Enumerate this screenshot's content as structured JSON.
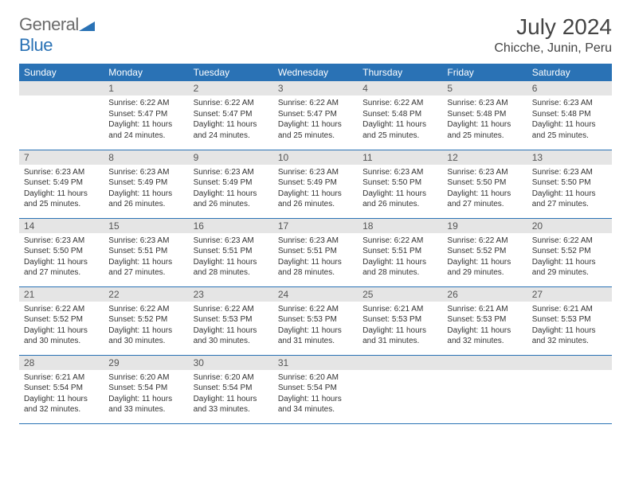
{
  "brand": {
    "word1": "General",
    "word2": "Blue",
    "tri_color": "#2a72b5"
  },
  "title": {
    "month": "July 2024",
    "location": "Chicche, Junin, Peru"
  },
  "colors": {
    "header_bg": "#2a72b5",
    "header_text": "#ffffff",
    "daynum_bg": "#e5e5e5",
    "row_divider": "#2a72b5",
    "text": "#333333",
    "page_bg": "#ffffff"
  },
  "typography": {
    "month_fontsize": 28,
    "location_fontsize": 16,
    "header_fontsize": 12,
    "daynum_fontsize": 12,
    "body_fontsize": 10
  },
  "weekdays": [
    "Sunday",
    "Monday",
    "Tuesday",
    "Wednesday",
    "Thursday",
    "Friday",
    "Saturday"
  ],
  "layout": {
    "first_weekday_index": 1,
    "days_in_month": 31
  },
  "days": {
    "1": {
      "sunrise": "6:22 AM",
      "sunset": "5:47 PM",
      "daylight_h": 11,
      "daylight_m": 24
    },
    "2": {
      "sunrise": "6:22 AM",
      "sunset": "5:47 PM",
      "daylight_h": 11,
      "daylight_m": 24
    },
    "3": {
      "sunrise": "6:22 AM",
      "sunset": "5:47 PM",
      "daylight_h": 11,
      "daylight_m": 25
    },
    "4": {
      "sunrise": "6:22 AM",
      "sunset": "5:48 PM",
      "daylight_h": 11,
      "daylight_m": 25
    },
    "5": {
      "sunrise": "6:23 AM",
      "sunset": "5:48 PM",
      "daylight_h": 11,
      "daylight_m": 25
    },
    "6": {
      "sunrise": "6:23 AM",
      "sunset": "5:48 PM",
      "daylight_h": 11,
      "daylight_m": 25
    },
    "7": {
      "sunrise": "6:23 AM",
      "sunset": "5:49 PM",
      "daylight_h": 11,
      "daylight_m": 25
    },
    "8": {
      "sunrise": "6:23 AM",
      "sunset": "5:49 PM",
      "daylight_h": 11,
      "daylight_m": 26
    },
    "9": {
      "sunrise": "6:23 AM",
      "sunset": "5:49 PM",
      "daylight_h": 11,
      "daylight_m": 26
    },
    "10": {
      "sunrise": "6:23 AM",
      "sunset": "5:49 PM",
      "daylight_h": 11,
      "daylight_m": 26
    },
    "11": {
      "sunrise": "6:23 AM",
      "sunset": "5:50 PM",
      "daylight_h": 11,
      "daylight_m": 26
    },
    "12": {
      "sunrise": "6:23 AM",
      "sunset": "5:50 PM",
      "daylight_h": 11,
      "daylight_m": 27
    },
    "13": {
      "sunrise": "6:23 AM",
      "sunset": "5:50 PM",
      "daylight_h": 11,
      "daylight_m": 27
    },
    "14": {
      "sunrise": "6:23 AM",
      "sunset": "5:50 PM",
      "daylight_h": 11,
      "daylight_m": 27
    },
    "15": {
      "sunrise": "6:23 AM",
      "sunset": "5:51 PM",
      "daylight_h": 11,
      "daylight_m": 27
    },
    "16": {
      "sunrise": "6:23 AM",
      "sunset": "5:51 PM",
      "daylight_h": 11,
      "daylight_m": 28
    },
    "17": {
      "sunrise": "6:23 AM",
      "sunset": "5:51 PM",
      "daylight_h": 11,
      "daylight_m": 28
    },
    "18": {
      "sunrise": "6:22 AM",
      "sunset": "5:51 PM",
      "daylight_h": 11,
      "daylight_m": 28
    },
    "19": {
      "sunrise": "6:22 AM",
      "sunset": "5:52 PM",
      "daylight_h": 11,
      "daylight_m": 29
    },
    "20": {
      "sunrise": "6:22 AM",
      "sunset": "5:52 PM",
      "daylight_h": 11,
      "daylight_m": 29
    },
    "21": {
      "sunrise": "6:22 AM",
      "sunset": "5:52 PM",
      "daylight_h": 11,
      "daylight_m": 30
    },
    "22": {
      "sunrise": "6:22 AM",
      "sunset": "5:52 PM",
      "daylight_h": 11,
      "daylight_m": 30
    },
    "23": {
      "sunrise": "6:22 AM",
      "sunset": "5:53 PM",
      "daylight_h": 11,
      "daylight_m": 30
    },
    "24": {
      "sunrise": "6:22 AM",
      "sunset": "5:53 PM",
      "daylight_h": 11,
      "daylight_m": 31
    },
    "25": {
      "sunrise": "6:21 AM",
      "sunset": "5:53 PM",
      "daylight_h": 11,
      "daylight_m": 31
    },
    "26": {
      "sunrise": "6:21 AM",
      "sunset": "5:53 PM",
      "daylight_h": 11,
      "daylight_m": 32
    },
    "27": {
      "sunrise": "6:21 AM",
      "sunset": "5:53 PM",
      "daylight_h": 11,
      "daylight_m": 32
    },
    "28": {
      "sunrise": "6:21 AM",
      "sunset": "5:54 PM",
      "daylight_h": 11,
      "daylight_m": 32
    },
    "29": {
      "sunrise": "6:20 AM",
      "sunset": "5:54 PM",
      "daylight_h": 11,
      "daylight_m": 33
    },
    "30": {
      "sunrise": "6:20 AM",
      "sunset": "5:54 PM",
      "daylight_h": 11,
      "daylight_m": 33
    },
    "31": {
      "sunrise": "6:20 AM",
      "sunset": "5:54 PM",
      "daylight_h": 11,
      "daylight_m": 34
    }
  },
  "labels": {
    "sunrise": "Sunrise:",
    "sunset": "Sunset:",
    "daylight_prefix": "Daylight:",
    "hours_word": "hours",
    "and_word": "and",
    "minutes_word": "minutes."
  }
}
